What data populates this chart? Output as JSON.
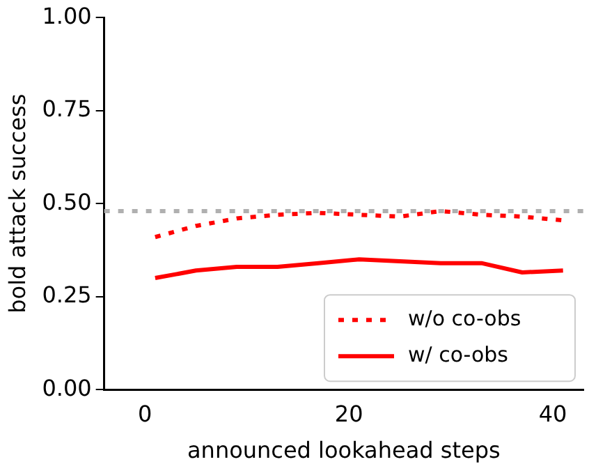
{
  "chart_data": {
    "type": "line",
    "xlabel": "announced lookahead steps",
    "ylabel": "bold attack success",
    "x": [
      1,
      5,
      9,
      13,
      17,
      21,
      25,
      29,
      33,
      37,
      41
    ],
    "xlim": [
      -4,
      43
    ],
    "xticks": [
      0,
      20,
      40
    ],
    "ylim": [
      0,
      1
    ],
    "yticks": [
      {
        "value": 0,
        "label": "0.00"
      },
      {
        "value": 0.25,
        "label": "0.25"
      },
      {
        "value": 0.5,
        "label": "0.50"
      },
      {
        "value": 0.75,
        "label": "0.75"
      },
      {
        "value": 1,
        "label": "1.00"
      }
    ],
    "series": [
      {
        "name": "w/o co-obs",
        "color": "#ff0000",
        "line_style": "dotted",
        "values": [
          0.41,
          0.44,
          0.46,
          0.47,
          0.475,
          0.47,
          0.465,
          0.48,
          0.47,
          0.465,
          0.455
        ]
      },
      {
        "name": "w/ co-obs",
        "color": "#ff0000",
        "line_style": "solid",
        "values": [
          0.3,
          0.32,
          0.33,
          0.33,
          0.34,
          0.35,
          0.345,
          0.34,
          0.34,
          0.315,
          0.32
        ]
      }
    ],
    "ref_lines": [
      {
        "axis": "y",
        "value": 0.48,
        "color": "#b0b0b0",
        "line_style": "dotted"
      }
    ],
    "grid": false,
    "legend": "bottom right",
    "marker": "none"
  }
}
